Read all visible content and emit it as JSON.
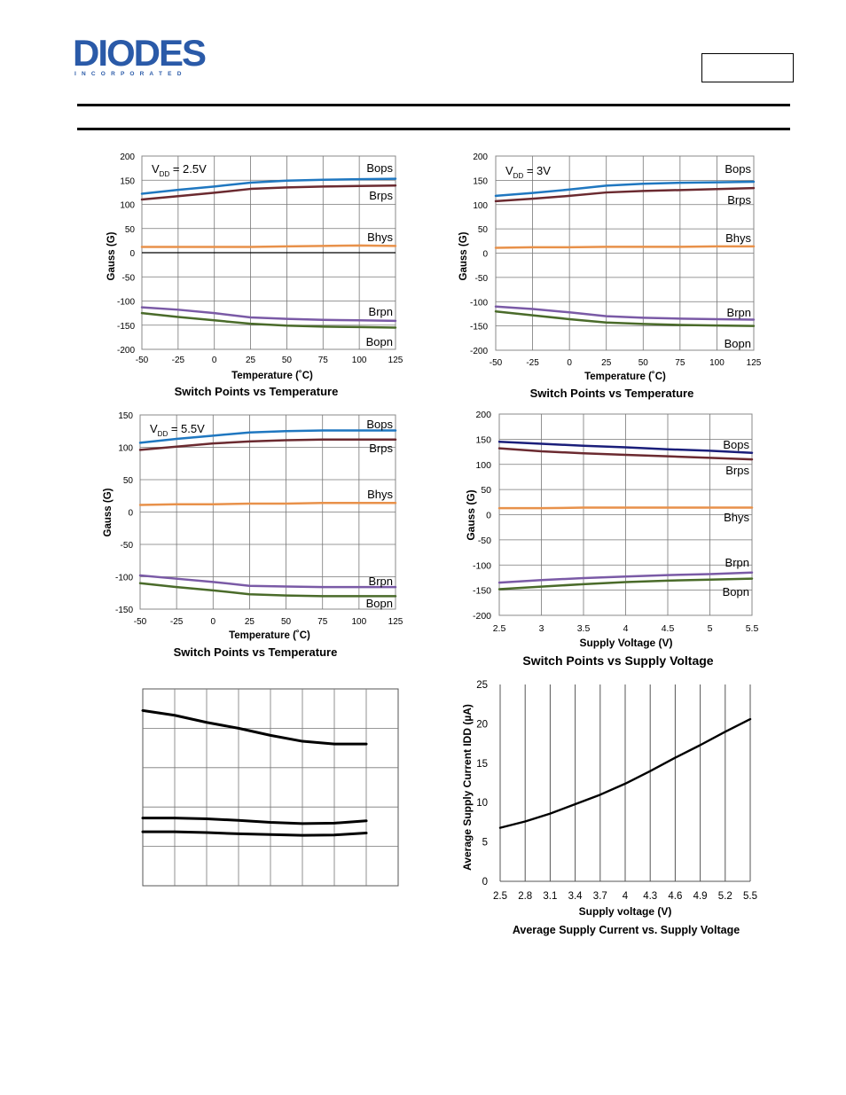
{
  "header": {
    "logo_text": "DIODES",
    "logo_sub": "I N C O R P O R A T E D",
    "part_box": ""
  },
  "colors": {
    "Bops": "#1f77c0",
    "Brps": "#6b2a30",
    "Bhys": "#e8914a",
    "Brpn": "#7a5aa6",
    "Bopn": "#4a6b2a",
    "Bops_dark": "#1a1e7a",
    "grid": "#000000"
  },
  "chart_data": [
    {
      "type": "line",
      "title": "Switch Points vs Temperature",
      "annotation": "V_DD = 2.5V",
      "annotation_main": "V",
      "annotation_sub": "DD",
      "annotation_rest": " = 2.5V",
      "xlabel": "Temperature (˚C)",
      "ylabel": "Gauss (G)",
      "xlim": [
        -50,
        125
      ],
      "ylim": [
        -200,
        200
      ],
      "xticks": [
        -50,
        -25,
        0,
        25,
        50,
        75,
        100,
        125
      ],
      "yticks": [
        200,
        150,
        100,
        50,
        0,
        -50,
        -100,
        -150,
        -200
      ],
      "x": [
        -50,
        -25,
        0,
        25,
        50,
        75,
        100,
        125
      ],
      "series": [
        {
          "name": "Bops",
          "values": [
            122,
            130,
            137,
            145,
            149,
            151,
            152,
            153
          ]
        },
        {
          "name": "Brps",
          "values": [
            110,
            117,
            124,
            132,
            135,
            137,
            138,
            139
          ]
        },
        {
          "name": "Bhys",
          "values": [
            12,
            12,
            12,
            12,
            13,
            14,
            15,
            14
          ]
        },
        {
          "name": "Brpn",
          "values": [
            -113,
            -118,
            -125,
            -134,
            -137,
            -139,
            -140,
            -141
          ]
        },
        {
          "name": "Bopn",
          "values": [
            -125,
            -133,
            -140,
            -147,
            -151,
            -153,
            -154,
            -155
          ]
        }
      ]
    },
    {
      "type": "line",
      "title": "Switch Points vs Temperature",
      "annotation_main": "V",
      "annotation_sub": "DD",
      "annotation_rest": " = 3V",
      "xlabel": "Temperature (˚C)",
      "ylabel": "Gauss (G)",
      "xlim": [
        -50,
        125
      ],
      "ylim": [
        -200,
        200
      ],
      "xticks": [
        -50,
        -25,
        0,
        25,
        50,
        75,
        100,
        125
      ],
      "yticks": [
        200,
        150,
        100,
        50,
        0,
        -50,
        -100,
        -150,
        -200
      ],
      "x": [
        -50,
        -25,
        0,
        25,
        50,
        75,
        100,
        125
      ],
      "series": [
        {
          "name": "Bops",
          "values": [
            118,
            124,
            131,
            139,
            143,
            145,
            146,
            147
          ]
        },
        {
          "name": "Brps",
          "values": [
            107,
            112,
            118,
            125,
            128,
            130,
            132,
            134
          ]
        },
        {
          "name": "Bhys",
          "values": [
            11,
            12,
            12,
            13,
            13,
            13,
            14,
            14
          ]
        },
        {
          "name": "Brpn",
          "values": [
            -110,
            -115,
            -122,
            -130,
            -133,
            -135,
            -136,
            -137
          ]
        },
        {
          "name": "Bopn",
          "values": [
            -120,
            -128,
            -136,
            -143,
            -146,
            -148,
            -149,
            -150
          ]
        }
      ]
    },
    {
      "type": "line",
      "title": "Switch Points vs Temperature",
      "annotation_main": "V",
      "annotation_sub": "DD",
      "annotation_rest": " = 5.5V",
      "xlabel": "Temperature (˚C)",
      "ylabel": "Gauss (G)",
      "xlim": [
        -50,
        125
      ],
      "ylim": [
        -150,
        150
      ],
      "xticks": [
        -50,
        -25,
        0,
        25,
        50,
        75,
        100,
        125
      ],
      "yticks": [
        150,
        100,
        50,
        0,
        -50,
        -100,
        -150
      ],
      "x": [
        -50,
        -25,
        0,
        25,
        50,
        75,
        100,
        125
      ],
      "series": [
        {
          "name": "Bops",
          "values": [
            107,
            113,
            118,
            123,
            125,
            126,
            126,
            126
          ]
        },
        {
          "name": "Brps",
          "values": [
            96,
            101,
            106,
            109,
            111,
            112,
            112,
            112
          ]
        },
        {
          "name": "Bhys",
          "values": [
            11,
            12,
            12,
            13,
            13,
            14,
            14,
            14
          ]
        },
        {
          "name": "Brpn",
          "values": [
            -98,
            -103,
            -108,
            -114,
            -115,
            -116,
            -116,
            -116
          ]
        },
        {
          "name": "Bopn",
          "values": [
            -110,
            -116,
            -121,
            -127,
            -129,
            -130,
            -130,
            -130
          ]
        }
      ]
    },
    {
      "type": "line",
      "title": "Switch Points vs Supply Voltage",
      "xlabel": "Supply Voltage (V)",
      "ylabel": "Gauss (G)",
      "xlim": [
        2.5,
        5.5
      ],
      "ylim": [
        -200,
        200
      ],
      "xticks": [
        2.5,
        3,
        3.5,
        4,
        4.5,
        5,
        5.5
      ],
      "yticks": [
        200,
        150,
        100,
        50,
        0,
        -50,
        -100,
        -150,
        -200
      ],
      "x": [
        2.5,
        3,
        3.5,
        4,
        4.5,
        5,
        5.5
      ],
      "series": [
        {
          "name": "Bops",
          "values": [
            145,
            141,
            137,
            134,
            130,
            127,
            123
          ]
        },
        {
          "name": "Brps",
          "values": [
            132,
            126,
            122,
            119,
            116,
            113,
            110
          ]
        },
        {
          "name": "Bhys",
          "values": [
            13,
            13,
            14,
            14,
            14,
            14,
            14
          ]
        },
        {
          "name": "Brpn",
          "values": [
            -135,
            -130,
            -126,
            -123,
            -120,
            -118,
            -115
          ]
        },
        {
          "name": "Bopn",
          "values": [
            -148,
            -143,
            -138,
            -134,
            -131,
            -129,
            -127
          ]
        }
      ]
    },
    {
      "type": "line",
      "title": "",
      "xlabel": "",
      "ylabel": "",
      "xlim": [
        0,
        8
      ],
      "ylim": [
        0,
        5
      ],
      "x": [
        0,
        1,
        2,
        3,
        4,
        5,
        6,
        7
      ],
      "series": [
        {
          "values": [
            4.45,
            4.33,
            4.15,
            4.0,
            3.82,
            3.67,
            3.6,
            3.6
          ]
        },
        {
          "values": [
            1.72,
            1.72,
            1.7,
            1.66,
            1.61,
            1.58,
            1.59,
            1.65
          ]
        },
        {
          "values": [
            1.37,
            1.37,
            1.35,
            1.32,
            1.3,
            1.28,
            1.29,
            1.34
          ]
        }
      ]
    },
    {
      "type": "line",
      "title": "Average Supply Current  vs. Supply Voltage",
      "xlabel": "Supply voltage (V)",
      "ylabel": "Average Supply Current IDD (µA)",
      "xlim": [
        2.5,
        5.5
      ],
      "ylim": [
        0,
        25
      ],
      "xticks": [
        2.5,
        2.8,
        3.1,
        3.4,
        3.7,
        4,
        4.3,
        4.6,
        4.9,
        5.2,
        5.5
      ],
      "yticks": [
        0,
        5,
        10,
        15,
        20,
        25
      ],
      "x": [
        2.5,
        2.8,
        3.1,
        3.4,
        3.7,
        4,
        4.3,
        4.6,
        4.9,
        5.2,
        5.5
      ],
      "series": [
        {
          "values": [
            6.8,
            7.6,
            8.6,
            9.8,
            11.0,
            12.4,
            14.0,
            15.7,
            17.3,
            19.0,
            20.6
          ]
        }
      ]
    }
  ]
}
